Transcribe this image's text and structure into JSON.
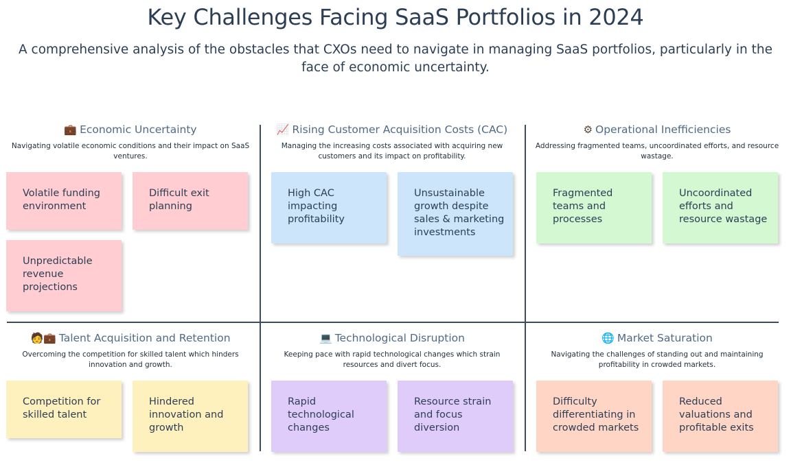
{
  "title": "Key Challenges Facing SaaS Portfolios in 2024",
  "subtitle": "A comprehensive analysis of the obstacles that CXOs need to navigate in managing SaaS portfolios, particularly in the face of economic uncertainty.",
  "colors": {
    "red": "#ffcdd2",
    "blue": "#cce5fb",
    "green": "#d4f8d2",
    "yellow": "#fff1bd",
    "purple": "#e0ccfb",
    "peach": "#ffd6c5"
  },
  "quadrants": [
    {
      "icon": "briefcase-icon",
      "icon_glyph": "💼",
      "heading": "Economic Uncertainty",
      "description": "Navigating volatile economic conditions and their impact on SaaS ventures.",
      "notes": [
        "Volatile funding environment",
        "Difficult exit planning",
        "Unpredictable revenue projections"
      ]
    },
    {
      "icon": "chart-icon",
      "icon_glyph": "📈",
      "heading": "Rising Customer Acquisition Costs (CAC)",
      "description": "Managing the increasing costs associated with acquiring new customers and its impact on profitability.",
      "notes": [
        "High CAC impacting profitability",
        "Unsustainable growth despite sales & marketing investments"
      ]
    },
    {
      "icon": "gear-icon",
      "icon_glyph": "⚙",
      "heading": "Operational Inefficiencies",
      "description": "Addressing fragmented teams, uncoordinated efforts, and resource wastage.",
      "notes": [
        "Fragmented teams and processes",
        "Uncoordinated efforts and resource wastage"
      ]
    },
    {
      "icon": "person-briefcase-icon",
      "icon_glyph": "🧑💼",
      "heading": "Talent Acquisition and Retention",
      "description": "Overcoming the competition for skilled talent which hinders innovation and growth.",
      "notes": [
        "Competition for skilled talent",
        "Hindered innovation and growth"
      ]
    },
    {
      "icon": "laptop-icon",
      "icon_glyph": "💻",
      "heading": "Technological Disruption",
      "description": "Keeping pace with rapid technological changes which strain resources and divert focus.",
      "notes": [
        "Rapid technological changes",
        "Resource strain and focus diversion"
      ]
    },
    {
      "icon": "globe-icon",
      "icon_glyph": "🌐",
      "heading": "Market Saturation",
      "description": "Navigating the challenges of standing out and maintaining profitability in crowded markets.",
      "notes": [
        "Difficulty differentiating in crowded markets",
        "Reduced valuations and profitable exits"
      ]
    }
  ]
}
